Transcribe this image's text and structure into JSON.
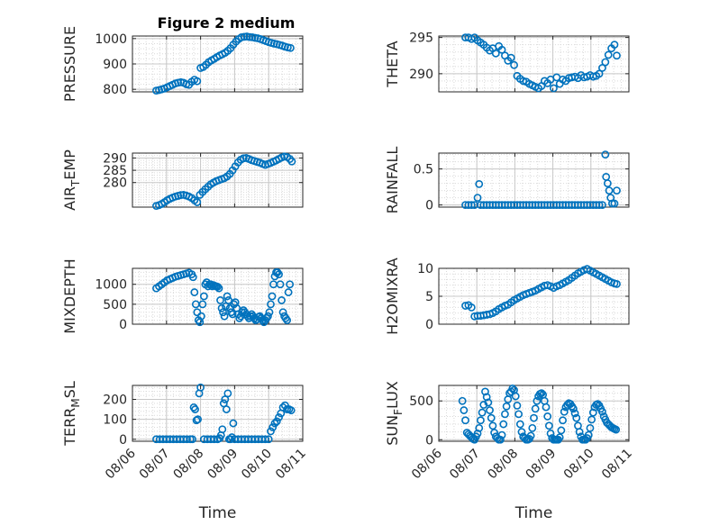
{
  "chart_data": [
    {
      "id": "pressure",
      "type": "scatter",
      "title": "Figure 2 medium",
      "ylabel": "PRESSURE",
      "ylabel_sub": "",
      "ylabel_tail": "",
      "xlabel": "",
      "ylim": [
        790,
        1010
      ],
      "yticks": [
        800,
        900,
        1000
      ],
      "xticks": [
        0,
        1,
        2,
        3,
        4,
        5
      ],
      "xticklabels": [],
      "grid": true,
      "x": [
        0.7,
        0.78,
        0.86,
        0.94,
        1.02,
        1.1,
        1.18,
        1.26,
        1.34,
        1.42,
        1.5,
        1.58,
        1.66,
        1.74,
        1.82,
        1.9,
        2.0,
        2.08,
        2.16,
        2.24,
        2.32,
        2.4,
        2.48,
        2.56,
        2.64,
        2.72,
        2.8,
        2.88,
        2.96,
        3.04,
        3.12,
        3.2,
        3.28,
        3.36,
        3.44,
        3.52,
        3.6,
        3.68,
        3.76,
        3.84,
        3.92,
        4.0,
        4.08,
        4.16,
        4.24,
        4.32,
        4.4,
        4.48,
        4.56,
        4.64
      ],
      "y": [
        795,
        797,
        800,
        803,
        808,
        813,
        818,
        823,
        826,
        828,
        826,
        820,
        818,
        830,
        838,
        832,
        884,
        888,
        897,
        907,
        914,
        920,
        927,
        933,
        938,
        944,
        952,
        962,
        976,
        988,
        998,
        1005,
        1007,
        1008,
        1006,
        1005,
        1003,
        1001,
        998,
        994,
        990,
        986,
        983,
        980,
        978,
        975,
        972,
        968,
        965,
        963
      ]
    },
    {
      "id": "theta",
      "type": "scatter",
      "title": "",
      "ylabel": "THETA",
      "ylabel_sub": "",
      "ylabel_tail": "",
      "xlabel": "",
      "ylim": [
        287.5,
        295.2
      ],
      "yticks": [
        290,
        295
      ],
      "xticks": [
        0,
        1,
        2,
        3,
        4,
        5
      ],
      "xticklabels": [],
      "grid": true,
      "x": [
        0.7,
        0.78,
        0.86,
        0.94,
        1.02,
        1.1,
        1.18,
        1.26,
        1.34,
        1.42,
        1.5,
        1.58,
        1.66,
        1.74,
        1.82,
        1.9,
        1.98,
        2.06,
        2.14,
        2.22,
        2.3,
        2.38,
        2.46,
        2.54,
        2.62,
        2.7,
        2.78,
        2.86,
        2.94,
        3.02,
        3.1,
        3.18,
        3.26,
        3.34,
        3.42,
        3.5,
        3.58,
        3.66,
        3.74,
        3.82,
        3.9,
        3.98,
        4.06,
        4.14,
        4.22,
        4.3,
        4.38,
        4.46,
        4.54,
        4.62,
        4.68
      ],
      "y": [
        295.0,
        295.0,
        294.8,
        295.0,
        294.6,
        294.3,
        294.0,
        293.6,
        293.2,
        293.5,
        292.8,
        293.8,
        293.3,
        292.5,
        291.8,
        292.2,
        291.2,
        289.7,
        289.3,
        289.0,
        288.9,
        288.6,
        288.4,
        288.2,
        288.0,
        288.3,
        289.0,
        288.7,
        289.2,
        288.0,
        289.5,
        288.6,
        289.2,
        289.0,
        289.4,
        289.5,
        289.6,
        289.4,
        289.8,
        289.5,
        289.6,
        289.8,
        289.6,
        289.7,
        290.0,
        290.8,
        291.6,
        292.6,
        293.5,
        294.0,
        292.5
      ]
    },
    {
      "id": "air_temp",
      "type": "scatter",
      "title": "",
      "ylabel": "AIR",
      "ylabel_sub": "T",
      "ylabel_tail": "EMP",
      "xlabel": "",
      "ylim": [
        270,
        292
      ],
      "yticks": [
        280,
        285,
        290
      ],
      "xticks": [
        0,
        1,
        2,
        3,
        4,
        5
      ],
      "xticklabels": [],
      "grid": true,
      "x": [
        0.7,
        0.78,
        0.86,
        0.94,
        1.02,
        1.1,
        1.18,
        1.26,
        1.34,
        1.42,
        1.5,
        1.58,
        1.66,
        1.74,
        1.82,
        1.9,
        1.98,
        2.06,
        2.14,
        2.22,
        2.3,
        2.38,
        2.46,
        2.54,
        2.62,
        2.7,
        2.78,
        2.86,
        2.94,
        3.02,
        3.1,
        3.18,
        3.26,
        3.34,
        3.42,
        3.5,
        3.58,
        3.66,
        3.74,
        3.82,
        3.9,
        3.98,
        4.06,
        4.14,
        4.22,
        4.3,
        4.38,
        4.46,
        4.54,
        4.62,
        4.68
      ],
      "y": [
        270.5,
        270.8,
        271.3,
        272.0,
        272.8,
        273.4,
        273.9,
        274.3,
        274.6,
        274.9,
        275.0,
        274.7,
        274.3,
        273.7,
        272.8,
        272.0,
        275.0,
        276.2,
        277.3,
        278.3,
        279.3,
        280.0,
        280.6,
        281.0,
        281.4,
        281.8,
        282.5,
        283.5,
        285.0,
        286.6,
        288.2,
        289.3,
        289.9,
        290.0,
        289.6,
        289.1,
        288.8,
        288.4,
        288.1,
        287.6,
        287.2,
        287.6,
        288.0,
        288.5,
        289.0,
        289.6,
        290.2,
        290.6,
        290.4,
        289.6,
        288.6
      ]
    },
    {
      "id": "rainfall",
      "type": "scatter",
      "title": "",
      "ylabel": "RAINFALL",
      "ylabel_sub": "",
      "ylabel_tail": "",
      "xlabel": "",
      "ylim": [
        -0.03,
        0.72
      ],
      "yticks": [
        0,
        0.5
      ],
      "xticks": [
        0,
        1,
        2,
        3,
        4,
        5
      ],
      "xticklabels": [],
      "grid": true,
      "x": [
        0.7,
        0.78,
        0.86,
        0.94,
        1.02,
        1.06,
        1.1,
        1.18,
        1.26,
        1.34,
        1.42,
        1.5,
        1.58,
        1.66,
        1.74,
        1.82,
        1.9,
        1.98,
        2.06,
        2.14,
        2.22,
        2.3,
        2.38,
        2.46,
        2.54,
        2.62,
        2.7,
        2.78,
        2.86,
        2.94,
        3.02,
        3.1,
        3.18,
        3.26,
        3.34,
        3.42,
        3.5,
        3.58,
        3.66,
        3.74,
        3.82,
        3.9,
        3.98,
        4.06,
        4.14,
        4.22,
        4.3,
        4.38,
        4.4,
        4.44,
        4.48,
        4.52,
        4.56,
        4.62,
        4.68
      ],
      "y": [
        0,
        0,
        0,
        0,
        0.1,
        0.29,
        0,
        0,
        0,
        0,
        0,
        0,
        0,
        0,
        0,
        0,
        0,
        0,
        0,
        0,
        0,
        0,
        0,
        0,
        0,
        0,
        0,
        0,
        0,
        0,
        0,
        0,
        0,
        0,
        0,
        0,
        0,
        0,
        0,
        0,
        0,
        0,
        0,
        0,
        0,
        0,
        0,
        0.7,
        0.39,
        0.3,
        0.2,
        0.1,
        0.02,
        0.02,
        0.2
      ]
    },
    {
      "id": "mixdepth",
      "type": "scatter",
      "title": "",
      "ylabel": "MIXDEPTH",
      "ylabel_sub": "",
      "ylabel_tail": "",
      "xlabel": "",
      "ylim": [
        0,
        1400
      ],
      "yticks": [
        0,
        500,
        1000
      ],
      "xticks": [
        0,
        1,
        2,
        3,
        4,
        5
      ],
      "xticklabels": [],
      "grid": true,
      "x": [
        0.7,
        0.78,
        0.86,
        0.94,
        1.02,
        1.1,
        1.18,
        1.26,
        1.34,
        1.42,
        1.5,
        1.58,
        1.66,
        1.74,
        1.78,
        1.82,
        1.86,
        1.9,
        1.94,
        1.98,
        2.02,
        2.06,
        2.1,
        2.14,
        2.18,
        2.22,
        2.26,
        2.3,
        2.34,
        2.38,
        2.42,
        2.46,
        2.5,
        2.54,
        2.58,
        2.62,
        2.66,
        2.7,
        2.74,
        2.78,
        2.82,
        2.86,
        2.9,
        2.94,
        2.98,
        3.02,
        3.06,
        3.1,
        3.14,
        3.18,
        3.22,
        3.26,
        3.3,
        3.34,
        3.38,
        3.42,
        3.46,
        3.5,
        3.54,
        3.58,
        3.62,
        3.66,
        3.7,
        3.74,
        3.78,
        3.82,
        3.86,
        3.9,
        3.94,
        3.98,
        4.02,
        4.06,
        4.1,
        4.14,
        4.18,
        4.22,
        4.26,
        4.3,
        4.34,
        4.38,
        4.42,
        4.46,
        4.5,
        4.54,
        4.58,
        4.62
      ],
      "y": [
        900,
        950,
        1000,
        1050,
        1100,
        1130,
        1160,
        1190,
        1210,
        1230,
        1250,
        1270,
        1290,
        1250,
        1180,
        800,
        500,
        300,
        100,
        50,
        200,
        500,
        700,
        1000,
        1050,
        950,
        1000,
        1000,
        950,
        980,
        960,
        950,
        940,
        900,
        600,
        400,
        300,
        200,
        450,
        700,
        600,
        400,
        300,
        250,
        500,
        550,
        400,
        250,
        150,
        200,
        300,
        350,
        300,
        250,
        200,
        150,
        200,
        250,
        200,
        150,
        100,
        120,
        180,
        200,
        150,
        100,
        50,
        100,
        150,
        200,
        300,
        500,
        700,
        1000,
        1200,
        1300,
        1300,
        1250,
        1000,
        600,
        300,
        200,
        150,
        100,
        800,
        1000
      ],
      "note": ""
    },
    {
      "id": "h2omixra",
      "type": "scatter",
      "title": "",
      "ylabel": "H2OMIXRA",
      "ylabel_sub": "",
      "ylabel_tail": "",
      "xlabel": "",
      "ylim": [
        0,
        10
      ],
      "yticks": [
        0,
        5,
        10
      ],
      "xticks": [
        0,
        1,
        2,
        3,
        4,
        5
      ],
      "xticklabels": [],
      "grid": true,
      "x": [
        0.7,
        0.78,
        0.86,
        0.94,
        1.02,
        1.1,
        1.18,
        1.26,
        1.34,
        1.42,
        1.5,
        1.58,
        1.66,
        1.74,
        1.82,
        1.9,
        1.98,
        2.06,
        2.14,
        2.22,
        2.3,
        2.38,
        2.46,
        2.54,
        2.62,
        2.7,
        2.78,
        2.86,
        2.94,
        3.02,
        3.1,
        3.18,
        3.26,
        3.34,
        3.42,
        3.5,
        3.58,
        3.66,
        3.74,
        3.82,
        3.9,
        3.98,
        4.06,
        4.14,
        4.22,
        4.3,
        4.38,
        4.46,
        4.54,
        4.62,
        4.68
      ],
      "y": [
        3.3,
        3.4,
        3.0,
        1.4,
        1.5,
        1.5,
        1.6,
        1.7,
        1.8,
        2.0,
        2.3,
        2.7,
        3.0,
        3.3,
        3.5,
        3.9,
        4.3,
        4.6,
        4.9,
        5.2,
        5.4,
        5.6,
        5.8,
        6.0,
        6.3,
        6.6,
        6.9,
        7.0,
        6.8,
        6.5,
        6.8,
        7.0,
        7.3,
        7.6,
        7.9,
        8.3,
        8.7,
        9.1,
        9.4,
        9.7,
        9.9,
        9.6,
        9.3,
        9.0,
        8.7,
        8.4,
        8.1,
        7.8,
        7.5,
        7.3,
        7.2
      ]
    },
    {
      "id": "terr_msl",
      "type": "scatter",
      "title": "",
      "ylabel": "TERR",
      "ylabel_sub": "M",
      "ylabel_tail": "SL",
      "xlabel": "Time",
      "ylim": [
        -10,
        270
      ],
      "yticks": [
        0,
        100,
        200
      ],
      "xticks": [
        0,
        1,
        2,
        3,
        4,
        5
      ],
      "xticklabels": [
        "08/06",
        "08/07",
        "08/08",
        "08/09",
        "08/10",
        "08/11"
      ],
      "grid": true,
      "x": [
        0.7,
        0.8,
        0.9,
        1.0,
        1.1,
        1.2,
        1.3,
        1.4,
        1.5,
        1.6,
        1.7,
        1.76,
        1.8,
        1.84,
        1.88,
        1.92,
        1.96,
        2.0,
        2.1,
        2.2,
        2.3,
        2.4,
        2.5,
        2.56,
        2.6,
        2.64,
        2.68,
        2.72,
        2.76,
        2.8,
        2.84,
        2.88,
        2.92,
        2.96,
        3.0,
        3.1,
        3.2,
        3.3,
        3.4,
        3.5,
        3.6,
        3.7,
        3.8,
        3.9,
        4.0,
        4.06,
        4.12,
        4.18,
        4.24,
        4.3,
        4.36,
        4.42,
        4.48,
        4.54,
        4.6,
        4.66
      ],
      "y": [
        0,
        0,
        0,
        0,
        0,
        0,
        0,
        0,
        0,
        0,
        0,
        0,
        160,
        150,
        95,
        100,
        230,
        260,
        0,
        0,
        0,
        0,
        0,
        5,
        20,
        50,
        180,
        200,
        150,
        230,
        0,
        0,
        10,
        80,
        0,
        0,
        0,
        0,
        0,
        0,
        0,
        0,
        0,
        0,
        0,
        40,
        60,
        80,
        90,
        110,
        130,
        160,
        170,
        150,
        150,
        145
      ]
    },
    {
      "id": "sun_flux",
      "type": "scatter",
      "title": "",
      "ylabel": "SUN",
      "ylabel_sub": "F",
      "ylabel_tail": "LUX",
      "xlabel": "Time",
      "ylim": [
        -20,
        700
      ],
      "yticks": [
        0,
        500
      ],
      "xticks": [
        0,
        1,
        2,
        3,
        4,
        5
      ],
      "xticklabels": [
        "08/06",
        "08/07",
        "08/08",
        "08/09",
        "08/10",
        "08/11"
      ],
      "grid": true,
      "x": [
        0.62,
        0.66,
        0.7,
        0.74,
        0.78,
        0.82,
        0.86,
        0.9,
        0.94,
        0.98,
        1.02,
        1.06,
        1.1,
        1.14,
        1.18,
        1.22,
        1.26,
        1.3,
        1.34,
        1.38,
        1.42,
        1.46,
        1.5,
        1.54,
        1.58,
        1.62,
        1.66,
        1.7,
        1.74,
        1.78,
        1.82,
        1.86,
        1.9,
        1.94,
        1.98,
        2.02,
        2.06,
        2.1,
        2.14,
        2.18,
        2.22,
        2.26,
        2.3,
        2.34,
        2.38,
        2.42,
        2.46,
        2.5,
        2.54,
        2.58,
        2.62,
        2.66,
        2.7,
        2.74,
        2.78,
        2.82,
        2.86,
        2.9,
        2.94,
        2.98,
        3.02,
        3.06,
        3.1,
        3.14,
        3.18,
        3.22,
        3.26,
        3.3,
        3.34,
        3.38,
        3.42,
        3.46,
        3.5,
        3.54,
        3.58,
        3.62,
        3.66,
        3.7,
        3.74,
        3.78,
        3.82,
        3.86,
        3.9,
        3.94,
        3.98,
        4.02,
        4.06,
        4.1,
        4.14,
        4.18,
        4.22,
        4.26,
        4.3,
        4.34,
        4.38,
        4.42,
        4.46,
        4.5,
        4.54,
        4.58,
        4.62,
        4.66
      ],
      "y": [
        500,
        380,
        250,
        90,
        70,
        50,
        30,
        10,
        0,
        40,
        80,
        150,
        250,
        350,
        450,
        620,
        550,
        480,
        380,
        280,
        180,
        90,
        40,
        20,
        0,
        0,
        60,
        200,
        330,
        430,
        520,
        600,
        620,
        660,
        640,
        560,
        440,
        330,
        200,
        100,
        40,
        20,
        0,
        0,
        10,
        50,
        150,
        280,
        400,
        500,
        560,
        590,
        600,
        580,
        500,
        420,
        300,
        180,
        80,
        20,
        0,
        0,
        0,
        0,
        30,
        120,
        250,
        360,
        420,
        450,
        470,
        460,
        430,
        400,
        340,
        280,
        180,
        100,
        40,
        0,
        0,
        0,
        20,
        60,
        150,
        260,
        350,
        420,
        450,
        460,
        440,
        400,
        360,
        300,
        260,
        220,
        200,
        180,
        160,
        150,
        140,
        130
      ]
    }
  ]
}
